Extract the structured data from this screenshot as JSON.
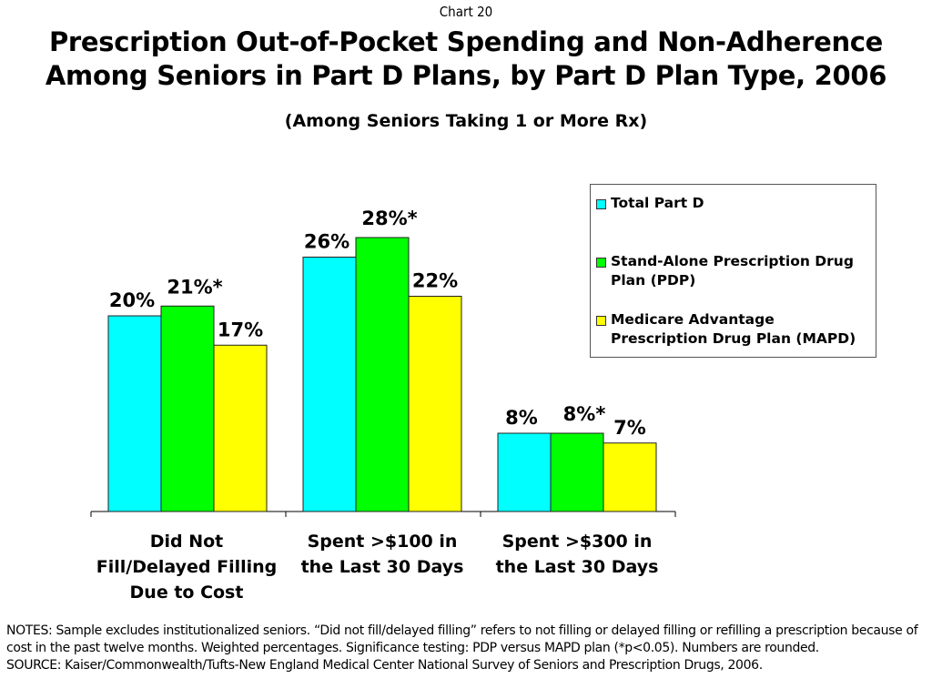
{
  "header": {
    "chart_number": "Chart 20",
    "title_line1": "Prescription Out-of-Pocket Spending and Non-Adherence",
    "title_line2": "Among Seniors in Part D Plans, by Part D Plan Type, 2006",
    "subtitle": "(Among Seniors Taking 1 or More Rx)"
  },
  "chart_data": {
    "type": "bar",
    "title": "Prescription Out-of-Pocket Spending and Non-Adherence Among Seniors in Part D Plans, by Part D Plan Type, 2006",
    "subtitle": "(Among Seniors Taking 1 or More Rx)",
    "xlabel": "",
    "ylabel": "",
    "ylim": [
      0,
      30
    ],
    "grid": false,
    "legend_position": "top-right",
    "categories": [
      [
        "Did Not",
        "Fill/Delayed Filling",
        "Due to Cost"
      ],
      [
        "Spent >$100 in",
        "the Last 30 Days"
      ],
      [
        "Spent >$300 in",
        "the Last 30 Days"
      ]
    ],
    "series": [
      {
        "name": "Total Part D",
        "color": "#00FFFF",
        "values": [
          20,
          26,
          8
        ],
        "labels": [
          "20%",
          "26%",
          "8%"
        ]
      },
      {
        "name": "Stand-Alone Prescription Drug Plan (PDP)",
        "color": "#00FF00",
        "values": [
          21,
          28,
          8
        ],
        "labels": [
          "21%*",
          "28%*",
          "8%*"
        ]
      },
      {
        "name": "Medicare Advantage Prescription Drug Plan (MAPD)",
        "color": "#FFFF00",
        "values": [
          17,
          22,
          7
        ],
        "labels": [
          "17%",
          "22%",
          "7%"
        ]
      }
    ]
  },
  "legend": {
    "items": [
      {
        "lines": [
          "Total Part D"
        ],
        "color": "#00FFFF"
      },
      {
        "lines": [
          "Stand-Alone Prescription Drug",
          "Plan (PDP)"
        ],
        "color": "#00FF00"
      },
      {
        "lines": [
          "Medicare Advantage",
          "Prescription Drug Plan (MAPD)"
        ],
        "color": "#FFFF00"
      }
    ]
  },
  "footer": {
    "notes": "NOTES: Sample excludes institutionalized seniors. “Did not fill/delayed filling” refers to not filling or delayed filling or refilling a prescription because of cost in the past twelve months. Weighted percentages. Significance testing: PDP versus MAPD plan (*p<0.05). Numbers are rounded.",
    "source": "SOURCE: Kaiser/Commonwealth/Tufts-New England Medical Center National Survey of Seniors and Prescription Drugs, 2006."
  }
}
